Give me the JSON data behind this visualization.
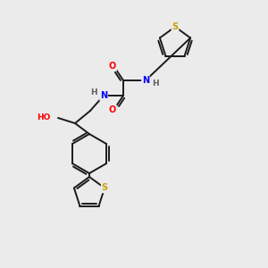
{
  "background_color": "#ebebeb",
  "bond_color": "#1a1a1a",
  "atom_colors": {
    "S": "#c8a000",
    "N": "#0000ff",
    "O": "#ff0000",
    "H": "#606060",
    "C": "#1a1a1a"
  },
  "figsize": [
    3.0,
    3.0
  ],
  "dpi": 100
}
